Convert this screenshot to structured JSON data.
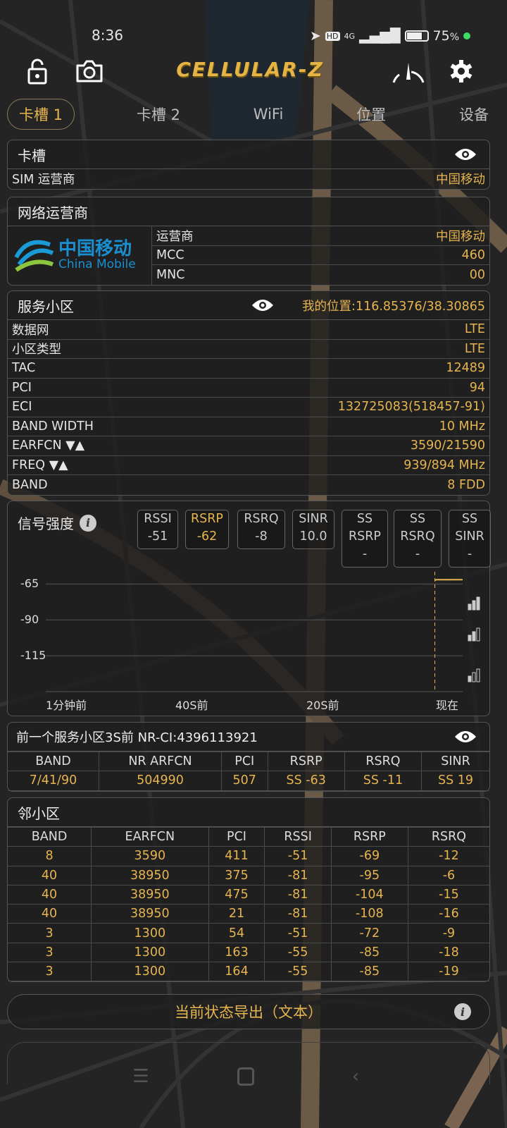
{
  "status_bar": {
    "time": "8:36",
    "network": "4G",
    "hd": "HD",
    "battery": "75",
    "battery_unit": "%"
  },
  "header": {
    "app_title": "CELLULAR-Z",
    "icons": [
      "lock-open-icon",
      "camera-icon",
      "speedometer-icon",
      "gear-icon"
    ]
  },
  "tabs": [
    {
      "label": "卡槽 1",
      "active": true
    },
    {
      "label": "卡槽 2"
    },
    {
      "label": "WiFi"
    },
    {
      "label": "位置"
    },
    {
      "label": "设备"
    }
  ],
  "sim": {
    "title": "卡槽",
    "rows": [
      {
        "label": "SIM 运营商",
        "value": "中国移动"
      }
    ]
  },
  "operator": {
    "title": "网络运营商",
    "logo_cn": "中国移动",
    "logo_en": "China Mobile",
    "rows": [
      {
        "label": "运营商",
        "value": "中国移动"
      },
      {
        "label": "MCC",
        "value": "460"
      },
      {
        "label": "MNC",
        "value": "00"
      }
    ]
  },
  "serving": {
    "title": "服务小区",
    "location": "我的位置:116.85376/38.30865",
    "rows": [
      {
        "label": "数据网",
        "value": "LTE"
      },
      {
        "label": "小区类型",
        "value": "LTE"
      },
      {
        "label": "TAC",
        "value": "12489"
      },
      {
        "label": "PCI",
        "value": "94"
      },
      {
        "label": "ECI",
        "value": "132725083(518457-91)"
      },
      {
        "label": "BAND WIDTH",
        "value": "10 MHz"
      },
      {
        "label": "EARFCN ▼▲",
        "value": "3590/21590"
      },
      {
        "label": "FREQ ▼▲",
        "value": "939/894 MHz"
      },
      {
        "label": "BAND",
        "value": "8 FDD"
      }
    ]
  },
  "signal": {
    "title": "信号强度",
    "chips": [
      {
        "label": "RSSI",
        "value": "-51"
      },
      {
        "label": "RSRP",
        "value": "-62",
        "selected": true
      },
      {
        "label": "RSRQ",
        "value": "-8"
      },
      {
        "label": "SINR",
        "value": "10.0"
      },
      {
        "label": "SS",
        "label2": "RSRP",
        "value": "-"
      },
      {
        "label": "SS",
        "label2": "RSRQ",
        "value": "-"
      },
      {
        "label": "SS",
        "label2": "SINR",
        "value": "-"
      }
    ],
    "chart_data": {
      "type": "line",
      "yticks": [
        "-65",
        "-90",
        "-115"
      ],
      "ylim": [
        -140,
        -55
      ],
      "xticks": [
        "1分钟前",
        "40S前",
        "20S前",
        "现在"
      ],
      "xlim": [
        -60,
        0
      ],
      "series": [
        {
          "x": [
            -4,
            -3.8,
            0
          ],
          "values": [
            -62.5,
            -62,
            -62
          ]
        }
      ],
      "color": "#e6b450"
    }
  },
  "previous": {
    "title": "前一个服务小区3S前 NR-CI:4396113921",
    "headers": [
      "BAND",
      "NR ARFCN",
      "PCI",
      "RSRP",
      "RSRQ",
      "SINR"
    ],
    "row": [
      "7/41/90",
      "504990",
      "507",
      "SS -63",
      "SS -11",
      "SS 19"
    ]
  },
  "neighbors": {
    "title": "邻小区",
    "headers": [
      "BAND",
      "EARFCN",
      "PCI",
      "RSSI",
      "RSRP",
      "RSRQ"
    ],
    "rows": [
      [
        "8",
        "3590",
        "411",
        "-51",
        "-69",
        "-12"
      ],
      [
        "40",
        "38950",
        "375",
        "-81",
        "-95",
        "-6"
      ],
      [
        "40",
        "38950",
        "475",
        "-81",
        "-104",
        "-15"
      ],
      [
        "40",
        "38950",
        "21",
        "-81",
        "-108",
        "-16"
      ],
      [
        "3",
        "1300",
        "54",
        "-51",
        "-72",
        "-9"
      ],
      [
        "3",
        "1300",
        "163",
        "-55",
        "-85",
        "-18"
      ],
      [
        "3",
        "1300",
        "164",
        "-55",
        "-85",
        "-19"
      ]
    ]
  },
  "export_button": "当前状态导出（文本）",
  "colors": {
    "accent": "#e6b450",
    "background": "#232323"
  }
}
